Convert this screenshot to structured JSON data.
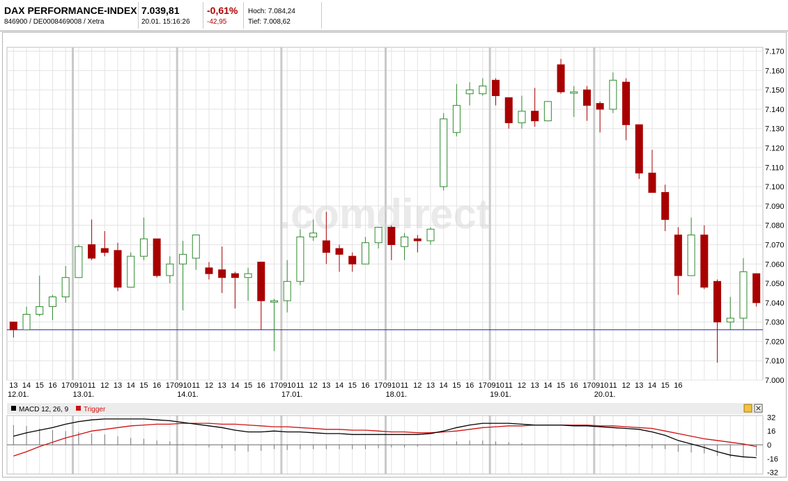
{
  "header": {
    "name": "DAX PERFORMANCE-INDEX",
    "ids": "846900 / DE0008469008 / Xetra",
    "price": "7.039,81",
    "datetime": "20.01. 15:16:26",
    "change_pct": "-0,61%",
    "change_abs": "-42,95",
    "high": "Hoch: 7.084,24",
    "low": "Tief: 7.008,62"
  },
  "watermark": ".comdirect",
  "colors": {
    "up": "#2e8b2e",
    "down": "#a80000",
    "baseline": "#1c1cb4",
    "macd": "#000000",
    "trigger": "#d01010",
    "grid": "#e3e3e3",
    "day_separator": "#c9c9c9"
  },
  "chart_data": [
    {
      "type": "candlestick",
      "title": "DAX PERFORMANCE-INDEX",
      "x_tick_labels": [
        "13",
        "14",
        "15",
        "16",
        "17",
        "0910",
        "11",
        "12",
        "13",
        "14",
        "15",
        "16",
        "17",
        "0910",
        "11",
        "12",
        "13",
        "14",
        "15",
        "16",
        "17",
        "0910",
        "11",
        "12",
        "13",
        "14",
        "15",
        "16",
        "17",
        "0910",
        "11",
        "12",
        "13",
        "14",
        "15",
        "16",
        "17",
        "0910",
        "11",
        "12",
        "13",
        "14",
        "15",
        "16",
        "17",
        "0910",
        "11",
        "12",
        "13",
        "14",
        "15",
        "16"
      ],
      "date_labels": [
        "12.01.",
        "13.01.",
        "14.01.",
        "17.01.",
        "18.01.",
        "19.01.",
        "20.01."
      ],
      "y_tick_labels": [
        "7.170",
        "7.160",
        "7.150",
        "7.140",
        "7.130",
        "7.120",
        "7.110",
        "7.100",
        "7.090",
        "7.080",
        "7.070",
        "7.060",
        "7.050",
        "7.040",
        "7.030",
        "7.020",
        "7.010",
        "7.000"
      ],
      "ylim": [
        7000,
        7172
      ],
      "baseline": 7026,
      "ohlc": [
        [
          7030,
          7030,
          7022,
          7026
        ],
        [
          7026,
          7038,
          7026,
          7034
        ],
        [
          7034,
          7054,
          7033,
          7038
        ],
        [
          7038,
          7044,
          7031,
          7043
        ],
        [
          7043,
          7059,
          7040,
          7053
        ],
        [
          7053,
          7070,
          7053,
          7069
        ],
        [
          7070,
          7083,
          7062,
          7063
        ],
        [
          7068,
          7077,
          7064,
          7066
        ],
        [
          7067,
          7071,
          7046,
          7048
        ],
        [
          7048,
          7066,
          7048,
          7064
        ],
        [
          7064,
          7084,
          7062,
          7073
        ],
        [
          7073,
          7073,
          7053,
          7054
        ],
        [
          7054,
          7064,
          7050,
          7060
        ],
        [
          7060,
          7072,
          7036,
          7065
        ],
        [
          7063,
          7075,
          7057,
          7075
        ],
        [
          7058,
          7061,
          7052,
          7055
        ],
        [
          7057,
          7069,
          7045,
          7053
        ],
        [
          7055,
          7056,
          7037,
          7053
        ],
        [
          7053,
          7058,
          7041,
          7055
        ],
        [
          7061,
          7061,
          7026,
          7041
        ],
        [
          7041,
          7042,
          7015,
          7041
        ],
        [
          7041,
          7062,
          7035,
          7051
        ],
        [
          7051,
          7078,
          7049,
          7074
        ],
        [
          7074,
          7083,
          7072,
          7076
        ],
        [
          7072,
          7087,
          7060,
          7066
        ],
        [
          7068,
          7070,
          7056,
          7065
        ],
        [
          7064,
          7066,
          7056,
          7060
        ],
        [
          7060,
          7074,
          7060,
          7071
        ],
        [
          7071,
          7079,
          7068,
          7079
        ],
        [
          7079,
          7080,
          7062,
          7070
        ],
        [
          7069,
          7076,
          7062,
          7074
        ],
        [
          7073,
          7075,
          7066,
          7072
        ],
        [
          7072,
          7079,
          7070,
          7078
        ],
        [
          7100,
          7138,
          7098,
          7135
        ],
        [
          7128,
          7153,
          7126,
          7142
        ],
        [
          7148,
          7154,
          7142,
          7150
        ],
        [
          7148,
          7156,
          7147,
          7152
        ],
        [
          7155,
          7156,
          7142,
          7147
        ],
        [
          7146,
          7146,
          7130,
          7133
        ],
        [
          7133,
          7147,
          7130,
          7139
        ],
        [
          7139,
          7151,
          7131,
          7134
        ],
        [
          7134,
          7144,
          7134,
          7144
        ],
        [
          7163,
          7166,
          7148,
          7149
        ],
        [
          7149,
          7152,
          7136,
          7149
        ],
        [
          7150,
          7152,
          7134,
          7142
        ],
        [
          7143,
          7144,
          7128,
          7140
        ],
        [
          7140,
          7159,
          7138,
          7155
        ],
        [
          7154,
          7156,
          7124,
          7132
        ],
        [
          7132,
          7132,
          7104,
          7107
        ],
        [
          7107,
          7119,
          7098,
          7097
        ],
        [
          7097,
          7101,
          7077,
          7083
        ],
        [
          7075,
          7079,
          7044,
          7054
        ],
        [
          7054,
          7084,
          7054,
          7075
        ],
        [
          7075,
          7080,
          7047,
          7048
        ],
        [
          7051,
          7052,
          7009,
          7030
        ],
        [
          7030,
          7043,
          7026,
          7032
        ],
        [
          7032,
          7063,
          7026,
          7056
        ],
        [
          7055,
          7055,
          7038,
          7040
        ]
      ]
    },
    {
      "type": "line",
      "title": "MACD 12, 26, 9",
      "series_names": [
        "MACD 12, 26, 9",
        "Trigger"
      ],
      "y_tick_labels": [
        "32",
        "16",
        "0",
        "-16",
        "-32"
      ],
      "ylim": [
        -34,
        34
      ],
      "macd": [
        10,
        14,
        17,
        20,
        24,
        27,
        29,
        30,
        30,
        30,
        30,
        29,
        28,
        26,
        24,
        22,
        20,
        17,
        15,
        15,
        16,
        15,
        15,
        14,
        13,
        13,
        12,
        12,
        12,
        12,
        12,
        12,
        13,
        16,
        20,
        23,
        25,
        25,
        25,
        24,
        23,
        23,
        23,
        22,
        22,
        21,
        20,
        19,
        18,
        15,
        11,
        5,
        1,
        -3,
        -8,
        -12,
        -14,
        -15
      ],
      "trigger": [
        -13,
        -8,
        -2,
        3,
        8,
        12,
        16,
        18,
        20,
        22,
        23,
        24,
        24,
        25,
        25,
        25,
        24,
        24,
        23,
        22,
        21,
        21,
        20,
        19,
        18,
        18,
        17,
        17,
        16,
        15,
        15,
        14,
        14,
        15,
        16,
        18,
        20,
        21,
        22,
        22,
        23,
        23,
        23,
        23,
        23,
        22,
        22,
        21,
        20,
        19,
        16,
        13,
        10,
        7,
        5,
        3,
        1,
        -2
      ]
    }
  ]
}
